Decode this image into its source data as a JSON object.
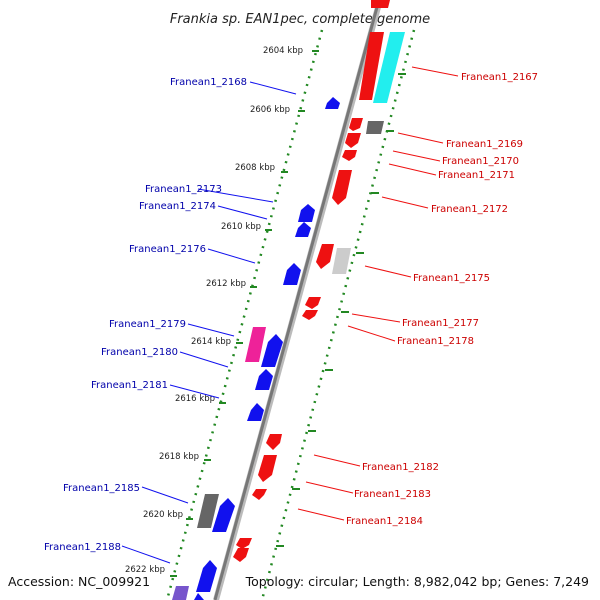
{
  "title": "Frankia sp. EAN1pec, complete genome",
  "footer": {
    "accession": "Accession: NC_009921",
    "summary": "Topology: circular; Length: 8,982,042 bp; Genes: 7,249"
  },
  "colors": {
    "forward": "#ee1111",
    "reverse": "#1111ee",
    "forward_label": "#cc0000",
    "reverse_label": "#0000aa",
    "backbone": "#888888",
    "ticks": "#228822",
    "cyan_gene": "#22eeee",
    "pink_gene": "#ee2299",
    "gray_gene": "#666666",
    "violet_gene": "#7755cc"
  },
  "kbp_labels": [
    "2604 kbp",
    "2606 kbp",
    "2608 kbp",
    "2610 kbp",
    "2612 kbp",
    "2614 kbp",
    "2616 kbp",
    "2618 kbp",
    "2620 kbp",
    "2622 kbp"
  ],
  "genes_left": [
    "Franean1_2168",
    "Franean1_2173",
    "Franean1_2174",
    "Franean1_2176",
    "Franean1_2179",
    "Franean1_2180",
    "Franean1_2181",
    "Franean1_2185",
    "Franean1_2188"
  ],
  "genes_right": [
    "Franean1_2167",
    "Franean1_2169",
    "Franean1_2170",
    "Franean1_2171",
    "Franean1_2172",
    "Franean1_2175",
    "Franean1_2177",
    "Franean1_2178",
    "Franean1_2182",
    "Franean1_2183",
    "Franean1_2184"
  ]
}
